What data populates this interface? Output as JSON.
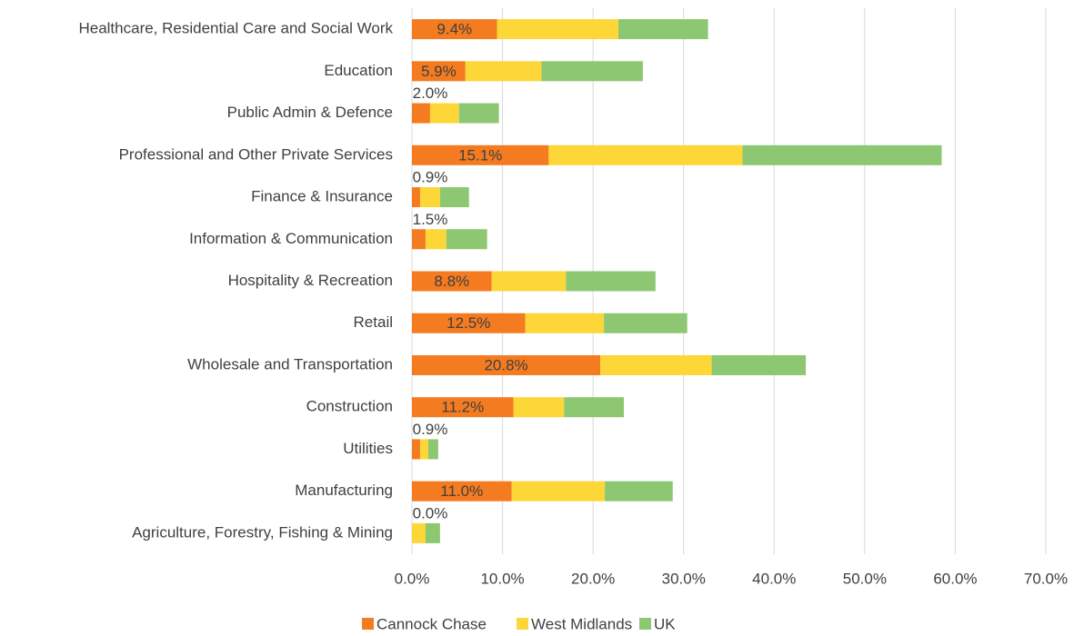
{
  "chart_data": {
    "type": "bar",
    "orientation": "horizontal",
    "stacked": true,
    "categories": [
      "Healthcare, Residential Care and Social Work",
      "Education",
      "Public Admin & Defence",
      "Professional and Other Private Services",
      "Finance & Insurance",
      "Information & Communication",
      "Hospitality & Recreation",
      "Retail",
      "Wholesale and Transportation",
      "Construction",
      "Utilities",
      "Manufacturing",
      "Agriculture, Forestry, Fishing & Mining"
    ],
    "series": [
      {
        "name": "Cannock Chase",
        "color": "#f47b20",
        "values": [
          9.4,
          5.9,
          2.0,
          15.1,
          0.9,
          1.5,
          8.8,
          12.5,
          20.8,
          11.2,
          0.9,
          11.0,
          0.0
        ],
        "value_labels": [
          "9.4%",
          "5.9%",
          "2.0%",
          "15.1%",
          "0.9%",
          "1.5%",
          "8.8%",
          "12.5%",
          "20.8%",
          "11.2%",
          "0.9%",
          "11.0%",
          "0.0%"
        ]
      },
      {
        "name": "West Midlands",
        "color": "#fdd637",
        "values": [
          13.4,
          8.4,
          3.2,
          21.4,
          2.2,
          2.3,
          8.2,
          8.7,
          12.3,
          5.6,
          0.9,
          10.3,
          1.5
        ]
      },
      {
        "name": "UK",
        "color": "#8dc771",
        "values": [
          9.9,
          11.2,
          4.4,
          22.0,
          3.2,
          4.5,
          9.9,
          9.2,
          10.4,
          6.6,
          1.1,
          7.5,
          1.6
        ]
      }
    ],
    "xlim": [
      0,
      70
    ],
    "xticks": [
      {
        "value": 0,
        "label": "0.0%"
      },
      {
        "value": 10,
        "label": "10.0%"
      },
      {
        "value": 20,
        "label": "20.0%"
      },
      {
        "value": 30,
        "label": "30.0%"
      },
      {
        "value": 40,
        "label": "40.0%"
      },
      {
        "value": 50,
        "label": "50.0%"
      },
      {
        "value": 60,
        "label": "60.0%"
      },
      {
        "value": 70,
        "label": "70.0%"
      }
    ],
    "grid": true,
    "legend": "bottom"
  }
}
